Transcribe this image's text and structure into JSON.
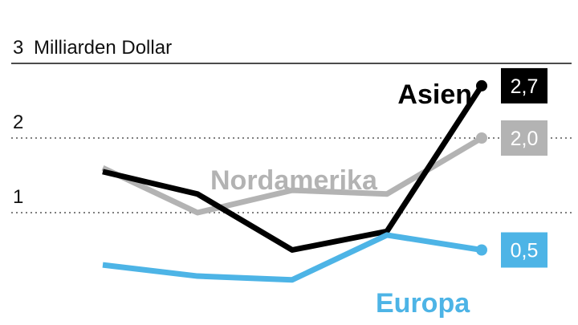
{
  "chart_data": {
    "type": "line",
    "unit_label": "Milliarden Dollar",
    "y_ticks": [
      {
        "value": 3,
        "label": "3"
      },
      {
        "value": 2,
        "label": "2"
      },
      {
        "value": 1,
        "label": "1"
      }
    ],
    "ylim": [
      0,
      3
    ],
    "grid": true,
    "x_count": 5,
    "series": [
      {
        "name": "Nordamerika",
        "color": "#b3b3b3",
        "values": [
          1.6,
          1.0,
          1.3,
          1.25,
          2.0
        ],
        "end_label": "2,0"
      },
      {
        "name": "Asien",
        "color": "#000000",
        "values": [
          1.55,
          1.25,
          0.5,
          0.75,
          2.7
        ],
        "end_label": "2,7"
      },
      {
        "name": "Europa",
        "color": "#4db4e6",
        "values": [
          0.3,
          0.15,
          0.1,
          0.7,
          0.5
        ],
        "end_label": "0,5"
      }
    ]
  }
}
